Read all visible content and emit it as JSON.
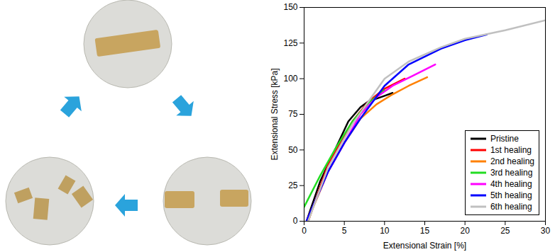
{
  "chart_data": {
    "type": "line",
    "x_label": "Extensional Strain [%]",
    "y_label": "Extensional Stress [kPa]",
    "xlim": [
      0,
      30
    ],
    "xticks": [
      0,
      5,
      10,
      15,
      20,
      25,
      30
    ],
    "ylim": [
      0,
      150
    ],
    "yticks": [
      0,
      25,
      50,
      75,
      100,
      125,
      150
    ],
    "grid": false,
    "legend": "bottom right",
    "series": [
      {
        "name": "Pristine",
        "color": "#000000",
        "x": [
          0.3,
          2,
          4,
          5.5,
          7,
          8,
          9,
          10,
          11
        ],
        "values": [
          0,
          28,
          52,
          70,
          80,
          84,
          86,
          88,
          90
        ]
      },
      {
        "name": "1st healing",
        "color": "#ff0000",
        "x": [
          0.5,
          3,
          6,
          8,
          10,
          12.5
        ],
        "values": [
          0,
          40,
          70,
          84,
          93,
          100
        ]
      },
      {
        "name": "2nd healing",
        "color": "#ff8000",
        "x": [
          0.5,
          1,
          3,
          5,
          7,
          9,
          11,
          13,
          15.3
        ],
        "values": [
          0,
          8,
          35,
          55,
          72,
          82,
          89,
          95,
          101
        ]
      },
      {
        "name": "3rd healing",
        "color": "#22dd22",
        "x": [
          0,
          2,
          4,
          6,
          8,
          10
        ],
        "values": [
          10,
          32,
          52,
          70,
          83,
          92
        ]
      },
      {
        "name": "4th healing",
        "color": "#ff00ff",
        "x": [
          0.3,
          3,
          5,
          7,
          9,
          11,
          13.5,
          16.3
        ],
        "values": [
          0,
          35,
          55,
          75,
          87,
          95,
          102,
          110
        ]
      },
      {
        "name": "5th healing",
        "color": "#0000ff",
        "x": [
          0.3,
          3,
          5,
          7,
          10,
          13,
          17,
          20,
          22.7
        ],
        "values": [
          0,
          35,
          55,
          72,
          95,
          110,
          121,
          127,
          131
        ]
      },
      {
        "name": "6th healing",
        "color": "#c0c0c0",
        "x": [
          0.5,
          3,
          6,
          10,
          13,
          17,
          20,
          25,
          30
        ],
        "values": [
          0,
          38,
          68,
          100,
          112,
          122,
          128,
          134,
          141
        ]
      }
    ]
  }
}
